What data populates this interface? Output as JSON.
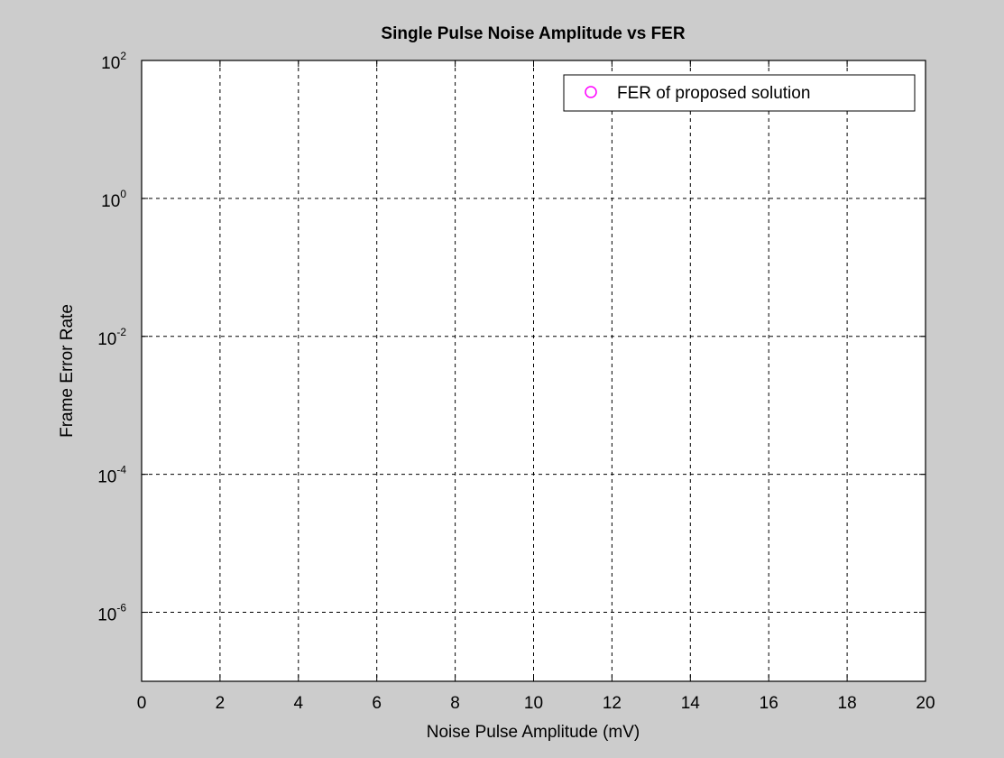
{
  "chart_data": {
    "type": "scatter",
    "title": "Single Pulse Noise Amplitude vs FER",
    "xlabel": "Noise Pulse Amplitude (mV)",
    "ylabel": "Frame Error Rate",
    "xlim": [
      0,
      20
    ],
    "ylim": [
      1e-07,
      100
    ],
    "yscale": "log",
    "grid": true,
    "x_ticks": [
      0,
      2,
      4,
      6,
      8,
      10,
      12,
      14,
      16,
      18,
      20
    ],
    "y_ticks": [
      {
        "value": 1e-06,
        "base": "10",
        "exp": "-6"
      },
      {
        "value": 0.0001,
        "base": "10",
        "exp": "-4"
      },
      {
        "value": 0.01,
        "base": "10",
        "exp": "-2"
      },
      {
        "value": 1,
        "base": "10",
        "exp": "0"
      },
      {
        "value": 100,
        "base": "10",
        "exp": "2"
      }
    ],
    "legend_position": "top-right",
    "series": [
      {
        "name": "FER of proposed solution",
        "marker": "circle",
        "color": "#ff00ff",
        "x": [],
        "y": []
      }
    ]
  }
}
